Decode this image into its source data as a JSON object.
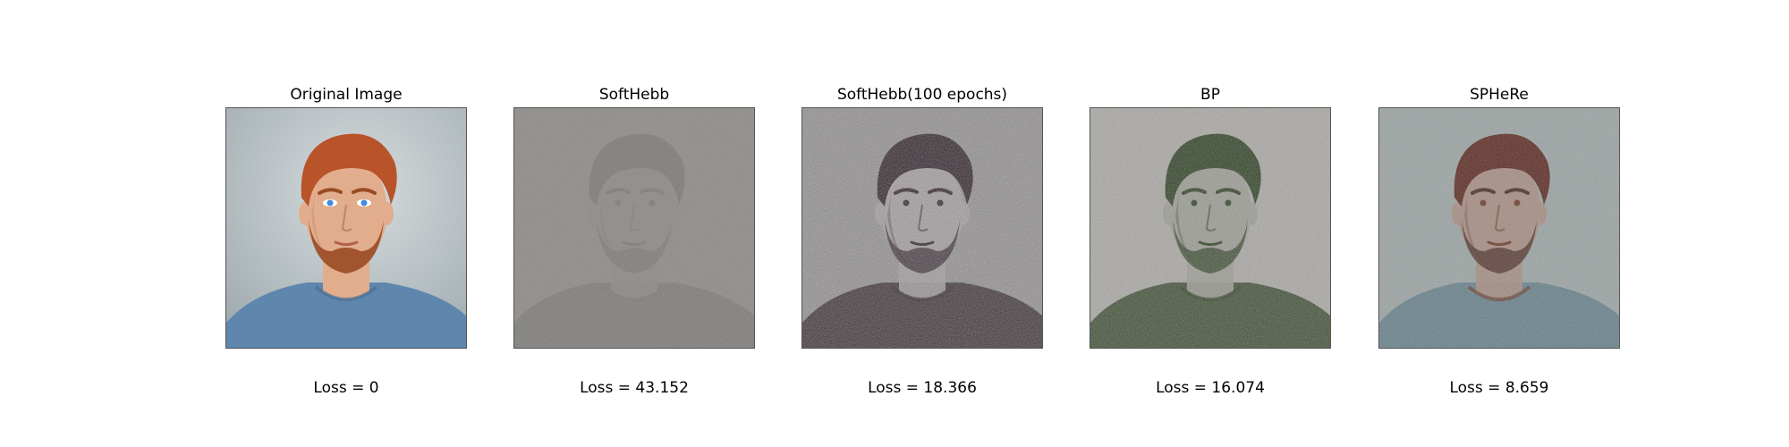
{
  "panels": [
    {
      "title": "Original Image",
      "loss": "Loss = 0",
      "image": {
        "depicts": "portrait of a red-haired man with blue eyes and a beard wearing a blue t-shirt",
        "variant": "original",
        "colors": {
          "background": "#b9c3c6",
          "hair": "#b8532a",
          "skin": "#e2ad8c",
          "shirt": "#5f87ad",
          "beard": "#9a4a24",
          "eyes": "#3f8de0"
        }
      }
    },
    {
      "title": "SoftHebb",
      "loss": "Loss = 43.152",
      "image": {
        "depicts": "faint grey noisy reconstruction of the portrait",
        "variant": "softhebb",
        "colors": {
          "background": "#8e8b88",
          "dark": "#6c6a68"
        }
      }
    },
    {
      "title": "SoftHebb(100 epochs)",
      "loss": "Loss = 18.366",
      "image": {
        "depicts": "high-contrast grainy grey-purple reconstruction of the portrait",
        "variant": "softhebb100",
        "colors": {
          "background": "#8f8c8d",
          "dark": "#2b1e25"
        }
      }
    },
    {
      "title": "BP",
      "loss": "Loss = 16.074",
      "image": {
        "depicts": "noisy light-grey reconstruction with dark green tinted face and hair",
        "variant": "bp",
        "colors": {
          "background": "#a9a7a3",
          "dark": "#2d3f22"
        }
      }
    },
    {
      "title": "SPHeRe",
      "loss": "Loss = 8.659",
      "image": {
        "depicts": "noisy colour reconstruction with reddish-brown hair and blue shirt",
        "variant": "sphere",
        "colors": {
          "background": "#9aa3a2",
          "hair": "#5c2a22",
          "skin": "#a58c80",
          "shirt": "#5e7a86",
          "beard": "#4a2a26"
        }
      }
    }
  ]
}
